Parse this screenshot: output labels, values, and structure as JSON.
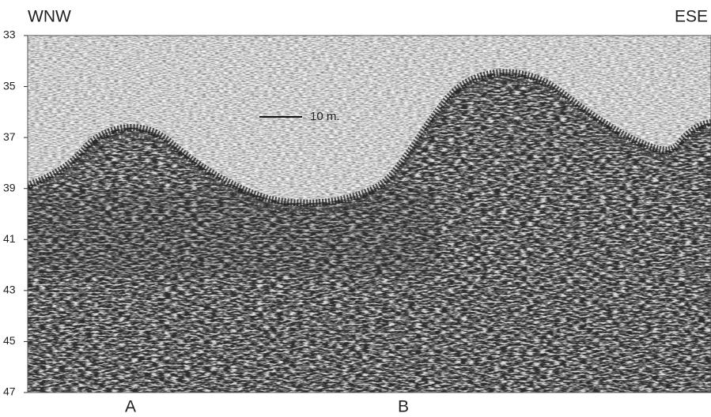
{
  "header": {
    "left": "WNW",
    "right": "ESE"
  },
  "scale_bar": "10 m.",
  "markers": [
    "A",
    "B"
  ],
  "axis": {
    "ylim": [
      33,
      47
    ],
    "yticks": [
      33,
      35,
      37,
      39,
      41,
      43,
      45,
      47
    ]
  }
}
